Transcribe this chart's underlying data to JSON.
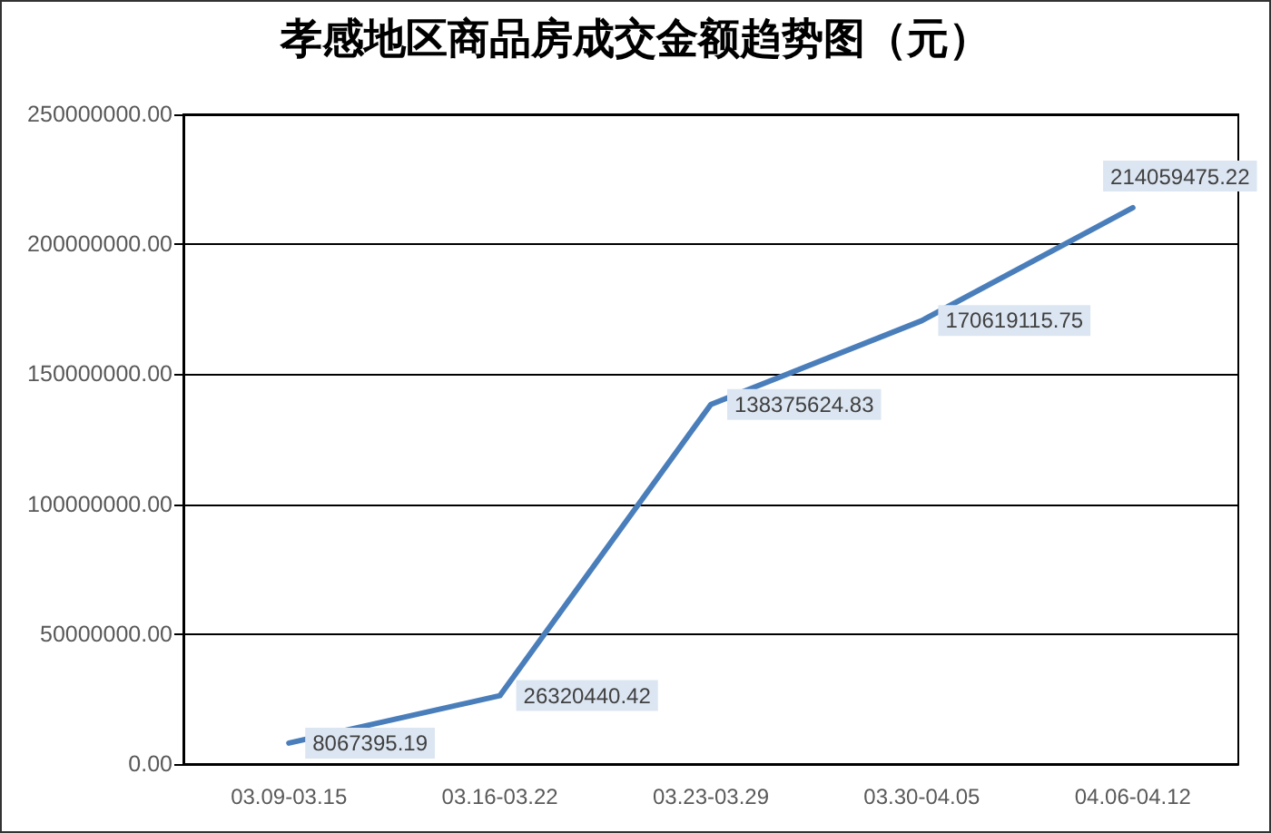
{
  "chart_data": {
    "type": "line",
    "title": "孝感地区商品房成交金额趋势图（元）",
    "categories": [
      "03.09-03.15",
      "03.16-03.22",
      "03.23-03.29",
      "03.30-04.05",
      "04.06-04.12"
    ],
    "series": [
      {
        "color": "#4a7ebb",
        "values": [
          8067395.19,
          26320440.42,
          138375624.83,
          170619115.75,
          214059475.22
        ]
      }
    ],
    "ylim": [
      0,
      250000000
    ],
    "yticks": [
      {
        "value": 0,
        "label": "0.00"
      },
      {
        "value": 50000000,
        "label": "50000000.00"
      },
      {
        "value": 100000000,
        "label": "100000000.00"
      },
      {
        "value": 150000000,
        "label": "150000000.00"
      },
      {
        "value": 200000000,
        "label": "200000000.00"
      },
      {
        "value": 250000000,
        "label": "250000000.00"
      }
    ],
    "grid": "y",
    "marker": "none",
    "line_style": "solid",
    "data_labels": true
  }
}
